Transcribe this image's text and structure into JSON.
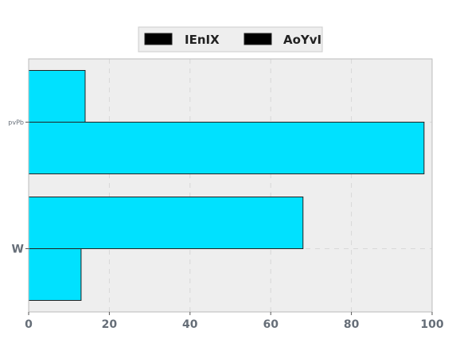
{
  "chart_data": {
    "type": "bar",
    "orientation": "horizontal",
    "categories": [
      "W",
      "pvPb"
    ],
    "category_label_styles": [
      "large-bold",
      "small"
    ],
    "series": [
      {
        "name": "IEnIX",
        "values": [
          68,
          14
        ],
        "color": "#00e1ff"
      },
      {
        "name": "AoYvI",
        "values": [
          13,
          98
        ],
        "color": "#00e1ff"
      }
    ],
    "xlim": [
      0,
      100
    ],
    "x_ticks": [
      0,
      20,
      40,
      60,
      80,
      100
    ],
    "x_tick_labels": [
      "0",
      "20",
      "40",
      "60",
      "80",
      "100"
    ],
    "grid": true,
    "legend_position": "top-center",
    "background_color": "#eeeeee",
    "title": "",
    "xlabel": "",
    "ylabel": ""
  }
}
